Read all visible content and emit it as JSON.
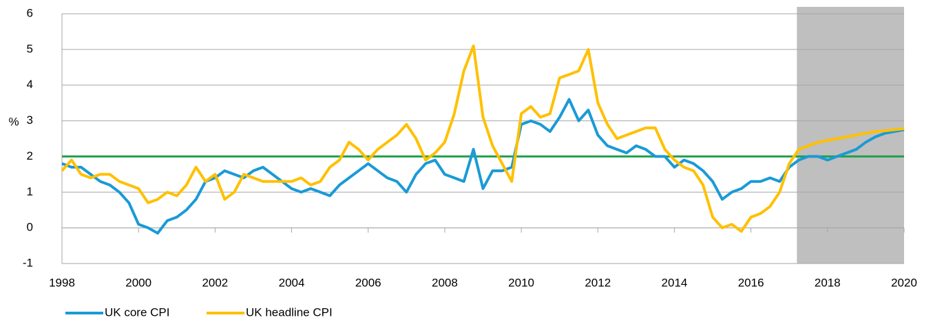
{
  "chart_data": {
    "type": "line",
    "ylabel": "%",
    "x": [
      1998,
      1998.25,
      1998.5,
      1998.75,
      1999,
      1999.25,
      1999.5,
      1999.75,
      2000,
      2000.25,
      2000.5,
      2000.75,
      2001,
      2001.25,
      2001.5,
      2001.75,
      2002,
      2002.25,
      2002.5,
      2002.75,
      2003,
      2003.25,
      2003.5,
      2003.75,
      2004,
      2004.25,
      2004.5,
      2004.75,
      2005,
      2005.25,
      2005.5,
      2005.75,
      2006,
      2006.25,
      2006.5,
      2006.75,
      2007,
      2007.25,
      2007.5,
      2007.75,
      2008,
      2008.25,
      2008.5,
      2008.75,
      2009,
      2009.25,
      2009.5,
      2009.75,
      2010,
      2010.25,
      2010.5,
      2010.75,
      2011,
      2011.25,
      2011.5,
      2011.75,
      2012,
      2012.25,
      2012.5,
      2012.75,
      2013,
      2013.25,
      2013.5,
      2013.75,
      2014,
      2014.25,
      2014.5,
      2014.75,
      2015,
      2015.25,
      2015.5,
      2015.75,
      2016,
      2016.25,
      2016.5,
      2016.75,
      2017,
      2017.25,
      2017.5,
      2017.75,
      2018,
      2018.25,
      2018.5,
      2018.75,
      2019,
      2019.25,
      2019.5,
      2019.75,
      2020
    ],
    "series": [
      {
        "name": "UK core CPI",
        "color": "#1a9ad6",
        "values": [
          1.8,
          1.7,
          1.7,
          1.5,
          1.3,
          1.2,
          1.0,
          0.7,
          0.1,
          0.0,
          -0.15,
          0.2,
          0.3,
          0.5,
          0.8,
          1.3,
          1.4,
          1.6,
          1.5,
          1.4,
          1.6,
          1.7,
          1.5,
          1.3,
          1.1,
          1.0,
          1.1,
          1.0,
          0.9,
          1.2,
          1.4,
          1.6,
          1.8,
          1.6,
          1.4,
          1.3,
          1.0,
          1.5,
          1.8,
          1.9,
          1.5,
          1.4,
          1.3,
          2.2,
          1.1,
          1.6,
          1.6,
          1.7,
          2.9,
          3.0,
          2.9,
          2.7,
          3.1,
          3.6,
          3.0,
          3.3,
          2.6,
          2.3,
          2.2,
          2.1,
          2.3,
          2.2,
          2.0,
          2.0,
          1.7,
          1.9,
          1.8,
          1.6,
          1.3,
          0.8,
          1.0,
          1.1,
          1.3,
          1.3,
          1.4,
          1.3,
          1.7,
          1.9,
          2.0,
          2.0,
          1.9,
          2.0,
          2.1,
          2.2,
          2.4,
          2.55,
          2.65,
          2.7,
          2.75
        ]
      },
      {
        "name": "UK headline CPI",
        "color": "#ffc000",
        "values": [
          1.6,
          1.9,
          1.5,
          1.4,
          1.5,
          1.5,
          1.3,
          1.2,
          1.1,
          0.7,
          0.8,
          1.0,
          0.9,
          1.2,
          1.7,
          1.3,
          1.5,
          0.8,
          1.0,
          1.5,
          1.4,
          1.3,
          1.3,
          1.3,
          1.3,
          1.4,
          1.2,
          1.3,
          1.7,
          1.9,
          2.4,
          2.2,
          1.9,
          2.2,
          2.4,
          2.6,
          2.9,
          2.5,
          1.9,
          2.1,
          2.4,
          3.2,
          4.4,
          5.1,
          3.1,
          2.3,
          1.8,
          1.3,
          3.2,
          3.4,
          3.1,
          3.2,
          4.2,
          4.3,
          4.4,
          5.0,
          3.5,
          2.9,
          2.5,
          2.6,
          2.7,
          2.8,
          2.8,
          2.2,
          1.9,
          1.7,
          1.6,
          1.2,
          0.3,
          0.0,
          0.1,
          -0.1,
          0.3,
          0.4,
          0.6,
          1.0,
          1.8,
          2.2,
          2.3,
          2.4,
          2.45,
          2.5,
          2.55,
          2.6,
          2.65,
          2.7,
          2.72,
          2.75,
          2.78
        ]
      }
    ],
    "xlim": [
      1998,
      2020
    ],
    "xticks": [
      1998,
      2000,
      2002,
      2004,
      2006,
      2008,
      2010,
      2012,
      2014,
      2016,
      2018,
      2020
    ],
    "ylim": [
      -1,
      6
    ],
    "yticks": [
      -1,
      0,
      1,
      2,
      3,
      4,
      5,
      6
    ],
    "grid": true,
    "reference_line": {
      "y": 2,
      "color": "#1ea04b"
    },
    "shaded_xrange": [
      2017.2,
      2020
    ],
    "shade_color": "#bfbfbf",
    "legend": "bottom-left"
  }
}
